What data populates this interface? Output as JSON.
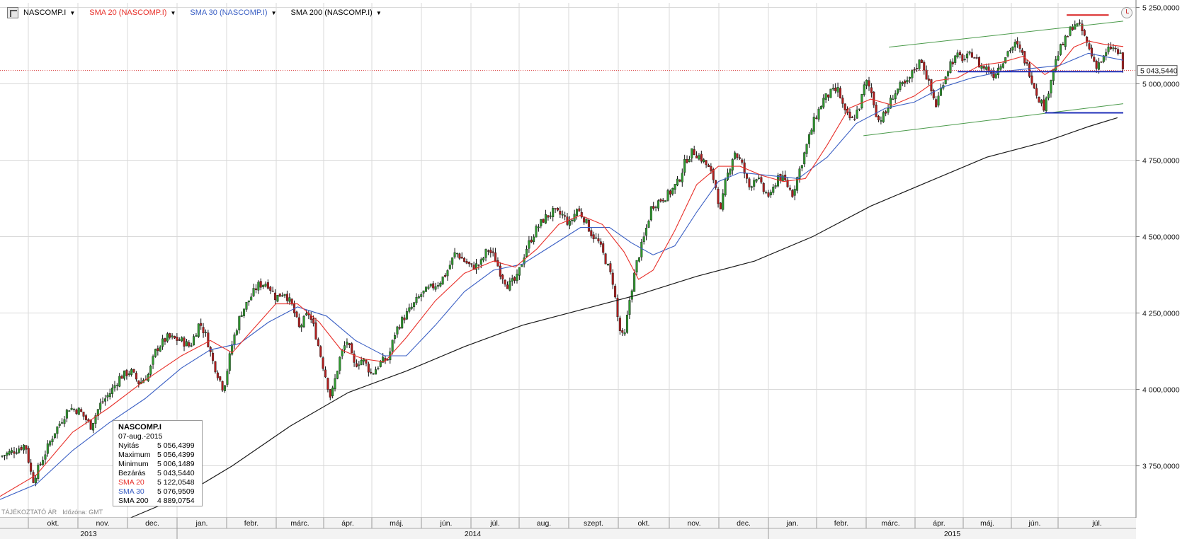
{
  "header": {
    "items": [
      {
        "label": "NASCOMP.I",
        "color": "#000000"
      },
      {
        "label": "SMA 20 (NASCOMP.I)",
        "color": "#e8302a"
      },
      {
        "label": "SMA 30 (NASCOMP.I)",
        "color": "#3a5fc4"
      },
      {
        "label": "SMA 200 (NASCOMP.I)",
        "color": "#000000"
      }
    ]
  },
  "footer": {
    "note": "TÁJÉKOZTATÓ ÁR",
    "tz": "Időzóna: GMT"
  },
  "info_box": {
    "title": "NASCOMP.I",
    "date": "07-aug.-2015",
    "rows": [
      {
        "label": "Nyitás",
        "value": "5 056,4399"
      },
      {
        "label": "Maximum",
        "value": "5 056,4399"
      },
      {
        "label": "Minimum",
        "value": "5 006,1489"
      },
      {
        "label": "Bezárás",
        "value": "5 043,5440"
      },
      {
        "label": "SMA 20",
        "value": "5 122,0548",
        "color": "#e8302a"
      },
      {
        "label": "SMA 30",
        "value": "5 076,9509",
        "color": "#3a5fc4"
      },
      {
        "label": "SMA 200",
        "value": "4 889,0754"
      }
    ]
  },
  "chart_data": {
    "type": "candlestick",
    "ylim": [
      3580,
      5265
    ],
    "yticks": [
      3750,
      4000,
      4250,
      4500,
      4750,
      5000,
      5250
    ],
    "ytick_labels": [
      "3 750,0000",
      "4 000,0000",
      "4 250,0000",
      "4 500,0000",
      "4 750,0000",
      "5 000,0000",
      "5 250,0000"
    ],
    "last_price": 5043.544,
    "last_price_label": "5 043,5440",
    "months": [
      "okt.",
      "nov.",
      "dec.",
      "jan.",
      "febr.",
      "márc.",
      "ápr.",
      "máj.",
      "jún.",
      "júl.",
      "aug.",
      "szept.",
      "okt.",
      "nov.",
      "dec.",
      "jan.",
      "febr.",
      "márc.",
      "ápr.",
      "máj.",
      "jún.",
      "júl."
    ],
    "years": [
      "2013",
      "2014",
      "2015"
    ],
    "close_path": [
      {
        "x": 0,
        "y": 3780
      },
      {
        "x": 20,
        "y": 3800
      },
      {
        "x": 35,
        "y": 3820
      },
      {
        "x": 45,
        "y": 3700
      },
      {
        "x": 60,
        "y": 3780
      },
      {
        "x": 75,
        "y": 3860
      },
      {
        "x": 95,
        "y": 3940
      },
      {
        "x": 110,
        "y": 3930
      },
      {
        "x": 125,
        "y": 3880
      },
      {
        "x": 138,
        "y": 3950
      },
      {
        "x": 152,
        "y": 3990
      },
      {
        "x": 165,
        "y": 4040
      },
      {
        "x": 180,
        "y": 4060
      },
      {
        "x": 192,
        "y": 4020
      },
      {
        "x": 205,
        "y": 4050
      },
      {
        "x": 215,
        "y": 4130
      },
      {
        "x": 230,
        "y": 4170
      },
      {
        "x": 250,
        "y": 4160
      },
      {
        "x": 262,
        "y": 4140
      },
      {
        "x": 275,
        "y": 4220
      },
      {
        "x": 285,
        "y": 4170
      },
      {
        "x": 292,
        "y": 4100
      },
      {
        "x": 300,
        "y": 4050
      },
      {
        "x": 308,
        "y": 4000
      },
      {
        "x": 320,
        "y": 4150
      },
      {
        "x": 332,
        "y": 4250
      },
      {
        "x": 345,
        "y": 4300
      },
      {
        "x": 355,
        "y": 4340
      },
      {
        "x": 368,
        "y": 4350
      },
      {
        "x": 380,
        "y": 4300
      },
      {
        "x": 392,
        "y": 4320
      },
      {
        "x": 403,
        "y": 4270
      },
      {
        "x": 412,
        "y": 4200
      },
      {
        "x": 425,
        "y": 4250
      },
      {
        "x": 433,
        "y": 4200
      },
      {
        "x": 445,
        "y": 4080
      },
      {
        "x": 456,
        "y": 3970
      },
      {
        "x": 468,
        "y": 4100
      },
      {
        "x": 478,
        "y": 4160
      },
      {
        "x": 488,
        "y": 4080
      },
      {
        "x": 500,
        "y": 4100
      },
      {
        "x": 512,
        "y": 4050
      },
      {
        "x": 525,
        "y": 4090
      },
      {
        "x": 535,
        "y": 4100
      },
      {
        "x": 545,
        "y": 4190
      },
      {
        "x": 555,
        "y": 4230
      },
      {
        "x": 568,
        "y": 4270
      },
      {
        "x": 580,
        "y": 4310
      },
      {
        "x": 592,
        "y": 4330
      },
      {
        "x": 605,
        "y": 4350
      },
      {
        "x": 615,
        "y": 4380
      },
      {
        "x": 628,
        "y": 4450
      },
      {
        "x": 640,
        "y": 4420
      },
      {
        "x": 650,
        "y": 4400
      },
      {
        "x": 662,
        "y": 4410
      },
      {
        "x": 672,
        "y": 4460
      },
      {
        "x": 682,
        "y": 4430
      },
      {
        "x": 690,
        "y": 4380
      },
      {
        "x": 700,
        "y": 4340
      },
      {
        "x": 712,
        "y": 4360
      },
      {
        "x": 725,
        "y": 4460
      },
      {
        "x": 738,
        "y": 4520
      },
      {
        "x": 750,
        "y": 4560
      },
      {
        "x": 762,
        "y": 4580
      },
      {
        "x": 775,
        "y": 4570
      },
      {
        "x": 785,
        "y": 4540
      },
      {
        "x": 795,
        "y": 4590
      },
      {
        "x": 805,
        "y": 4560
      },
      {
        "x": 815,
        "y": 4510
      },
      {
        "x": 825,
        "y": 4480
      },
      {
        "x": 835,
        "y": 4420
      },
      {
        "x": 845,
        "y": 4350
      },
      {
        "x": 853,
        "y": 4200
      },
      {
        "x": 860,
        "y": 4160
      },
      {
        "x": 868,
        "y": 4300
      },
      {
        "x": 878,
        "y": 4420
      },
      {
        "x": 888,
        "y": 4500
      },
      {
        "x": 898,
        "y": 4600
      },
      {
        "x": 910,
        "y": 4620
      },
      {
        "x": 922,
        "y": 4640
      },
      {
        "x": 935,
        "y": 4680
      },
      {
        "x": 945,
        "y": 4750
      },
      {
        "x": 955,
        "y": 4780
      },
      {
        "x": 965,
        "y": 4760
      },
      {
        "x": 975,
        "y": 4730
      },
      {
        "x": 985,
        "y": 4680
      },
      {
        "x": 993,
        "y": 4580
      },
      {
        "x": 1000,
        "y": 4680
      },
      {
        "x": 1012,
        "y": 4780
      },
      {
        "x": 1022,
        "y": 4740
      },
      {
        "x": 1032,
        "y": 4660
      },
      {
        "x": 1042,
        "y": 4700
      },
      {
        "x": 1052,
        "y": 4650
      },
      {
        "x": 1062,
        "y": 4630
      },
      {
        "x": 1072,
        "y": 4700
      },
      {
        "x": 1082,
        "y": 4680
      },
      {
        "x": 1092,
        "y": 4640
      },
      {
        "x": 1102,
        "y": 4720
      },
      {
        "x": 1112,
        "y": 4800
      },
      {
        "x": 1122,
        "y": 4880
      },
      {
        "x": 1135,
        "y": 4950
      },
      {
        "x": 1145,
        "y": 4970
      },
      {
        "x": 1155,
        "y": 4980
      },
      {
        "x": 1165,
        "y": 4900
      },
      {
        "x": 1175,
        "y": 4880
      },
      {
        "x": 1185,
        "y": 4930
      },
      {
        "x": 1193,
        "y": 5010
      },
      {
        "x": 1200,
        "y": 4980
      },
      {
        "x": 1210,
        "y": 4880
      },
      {
        "x": 1220,
        "y": 4900
      },
      {
        "x": 1230,
        "y": 4960
      },
      {
        "x": 1240,
        "y": 4990
      },
      {
        "x": 1250,
        "y": 5000
      },
      {
        "x": 1260,
        "y": 5050
      },
      {
        "x": 1270,
        "y": 5080
      },
      {
        "x": 1280,
        "y": 5000
      },
      {
        "x": 1290,
        "y": 4930
      },
      {
        "x": 1300,
        "y": 5010
      },
      {
        "x": 1310,
        "y": 5070
      },
      {
        "x": 1320,
        "y": 5090
      },
      {
        "x": 1330,
        "y": 5080
      },
      {
        "x": 1340,
        "y": 5100
      },
      {
        "x": 1350,
        "y": 5060
      },
      {
        "x": 1360,
        "y": 5050
      },
      {
        "x": 1370,
        "y": 5030
      },
      {
        "x": 1380,
        "y": 5070
      },
      {
        "x": 1390,
        "y": 5110
      },
      {
        "x": 1400,
        "y": 5130
      },
      {
        "x": 1410,
        "y": 5090
      },
      {
        "x": 1420,
        "y": 5030
      },
      {
        "x": 1430,
        "y": 4960
      },
      {
        "x": 1440,
        "y": 4920
      },
      {
        "x": 1450,
        "y": 5040
      },
      {
        "x": 1460,
        "y": 5110
      },
      {
        "x": 1470,
        "y": 5150
      },
      {
        "x": 1480,
        "y": 5200
      },
      {
        "x": 1490,
        "y": 5180
      },
      {
        "x": 1500,
        "y": 5120
      },
      {
        "x": 1510,
        "y": 5060
      },
      {
        "x": 1520,
        "y": 5080
      },
      {
        "x": 1530,
        "y": 5120
      },
      {
        "x": 1538,
        "y": 5110
      },
      {
        "x": 1544,
        "y": 5090
      },
      {
        "x": 1548,
        "y": 5043
      }
    ],
    "sma20": [
      {
        "x": 0,
        "y": 3650
      },
      {
        "x": 50,
        "y": 3720
      },
      {
        "x": 100,
        "y": 3860
      },
      {
        "x": 150,
        "y": 3940
      },
      {
        "x": 200,
        "y": 4030
      },
      {
        "x": 250,
        "y": 4110
      },
      {
        "x": 290,
        "y": 4160
      },
      {
        "x": 320,
        "y": 4120
      },
      {
        "x": 350,
        "y": 4200
      },
      {
        "x": 380,
        "y": 4280
      },
      {
        "x": 410,
        "y": 4280
      },
      {
        "x": 440,
        "y": 4220
      },
      {
        "x": 470,
        "y": 4130
      },
      {
        "x": 500,
        "y": 4100
      },
      {
        "x": 530,
        "y": 4090
      },
      {
        "x": 560,
        "y": 4170
      },
      {
        "x": 600,
        "y": 4290
      },
      {
        "x": 640,
        "y": 4380
      },
      {
        "x": 680,
        "y": 4420
      },
      {
        "x": 710,
        "y": 4400
      },
      {
        "x": 740,
        "y": 4460
      },
      {
        "x": 770,
        "y": 4540
      },
      {
        "x": 800,
        "y": 4570
      },
      {
        "x": 830,
        "y": 4540
      },
      {
        "x": 860,
        "y": 4450
      },
      {
        "x": 880,
        "y": 4360
      },
      {
        "x": 900,
        "y": 4390
      },
      {
        "x": 930,
        "y": 4520
      },
      {
        "x": 960,
        "y": 4670
      },
      {
        "x": 990,
        "y": 4730
      },
      {
        "x": 1020,
        "y": 4730
      },
      {
        "x": 1050,
        "y": 4700
      },
      {
        "x": 1080,
        "y": 4680
      },
      {
        "x": 1110,
        "y": 4690
      },
      {
        "x": 1140,
        "y": 4800
      },
      {
        "x": 1170,
        "y": 4920
      },
      {
        "x": 1200,
        "y": 4950
      },
      {
        "x": 1230,
        "y": 4930
      },
      {
        "x": 1260,
        "y": 4960
      },
      {
        "x": 1290,
        "y": 5010
      },
      {
        "x": 1320,
        "y": 5020
      },
      {
        "x": 1350,
        "y": 5060
      },
      {
        "x": 1380,
        "y": 5070
      },
      {
        "x": 1410,
        "y": 5090
      },
      {
        "x": 1440,
        "y": 5030
      },
      {
        "x": 1460,
        "y": 5060
      },
      {
        "x": 1480,
        "y": 5120
      },
      {
        "x": 1500,
        "y": 5140
      },
      {
        "x": 1520,
        "y": 5130
      },
      {
        "x": 1548,
        "y": 5122
      }
    ],
    "sma30": [
      {
        "x": 0,
        "y": 3640
      },
      {
        "x": 50,
        "y": 3690
      },
      {
        "x": 100,
        "y": 3800
      },
      {
        "x": 150,
        "y": 3890
      },
      {
        "x": 200,
        "y": 3970
      },
      {
        "x": 250,
        "y": 4070
      },
      {
        "x": 290,
        "y": 4130
      },
      {
        "x": 330,
        "y": 4150
      },
      {
        "x": 370,
        "y": 4220
      },
      {
        "x": 410,
        "y": 4270
      },
      {
        "x": 450,
        "y": 4240
      },
      {
        "x": 490,
        "y": 4160
      },
      {
        "x": 530,
        "y": 4110
      },
      {
        "x": 560,
        "y": 4110
      },
      {
        "x": 600,
        "y": 4210
      },
      {
        "x": 640,
        "y": 4320
      },
      {
        "x": 680,
        "y": 4390
      },
      {
        "x": 720,
        "y": 4410
      },
      {
        "x": 760,
        "y": 4470
      },
      {
        "x": 800,
        "y": 4530
      },
      {
        "x": 840,
        "y": 4530
      },
      {
        "x": 870,
        "y": 4480
      },
      {
        "x": 900,
        "y": 4440
      },
      {
        "x": 930,
        "y": 4470
      },
      {
        "x": 960,
        "y": 4580
      },
      {
        "x": 990,
        "y": 4680
      },
      {
        "x": 1020,
        "y": 4710
      },
      {
        "x": 1060,
        "y": 4700
      },
      {
        "x": 1100,
        "y": 4690
      },
      {
        "x": 1140,
        "y": 4760
      },
      {
        "x": 1180,
        "y": 4870
      },
      {
        "x": 1220,
        "y": 4920
      },
      {
        "x": 1260,
        "y": 4940
      },
      {
        "x": 1300,
        "y": 4990
      },
      {
        "x": 1340,
        "y": 5020
      },
      {
        "x": 1380,
        "y": 5040
      },
      {
        "x": 1420,
        "y": 5050
      },
      {
        "x": 1460,
        "y": 5060
      },
      {
        "x": 1500,
        "y": 5100
      },
      {
        "x": 1548,
        "y": 5077
      }
    ],
    "sma200": [
      {
        "x": 180,
        "y": 3580
      },
      {
        "x": 250,
        "y": 3650
      },
      {
        "x": 320,
        "y": 3750
      },
      {
        "x": 400,
        "y": 3880
      },
      {
        "x": 480,
        "y": 3990
      },
      {
        "x": 560,
        "y": 4060
      },
      {
        "x": 640,
        "y": 4140
      },
      {
        "x": 720,
        "y": 4210
      },
      {
        "x": 800,
        "y": 4260
      },
      {
        "x": 880,
        "y": 4310
      },
      {
        "x": 960,
        "y": 4370
      },
      {
        "x": 1040,
        "y": 4420
      },
      {
        "x": 1120,
        "y": 4500
      },
      {
        "x": 1200,
        "y": 4600
      },
      {
        "x": 1280,
        "y": 4680
      },
      {
        "x": 1360,
        "y": 4760
      },
      {
        "x": 1440,
        "y": 4810
      },
      {
        "x": 1500,
        "y": 4860
      },
      {
        "x": 1540,
        "y": 4889
      }
    ],
    "annotations": {
      "channel_upper": [
        {
          "x": 1225,
          "y": 5120
        },
        {
          "x": 1548,
          "y": 5205
        }
      ],
      "channel_lower": [
        {
          "x": 1190,
          "y": 4830
        },
        {
          "x": 1548,
          "y": 4935
        }
      ],
      "support_line": [
        {
          "x": 1320,
          "y": 5040
        },
        {
          "x": 1548,
          "y": 5040
        }
      ],
      "low_line": [
        {
          "x": 1440,
          "y": 4905
        },
        {
          "x": 1548,
          "y": 4905
        }
      ],
      "resistance_line": [
        {
          "x": 1470,
          "y": 5225
        },
        {
          "x": 1528,
          "y": 5225
        }
      ]
    }
  }
}
